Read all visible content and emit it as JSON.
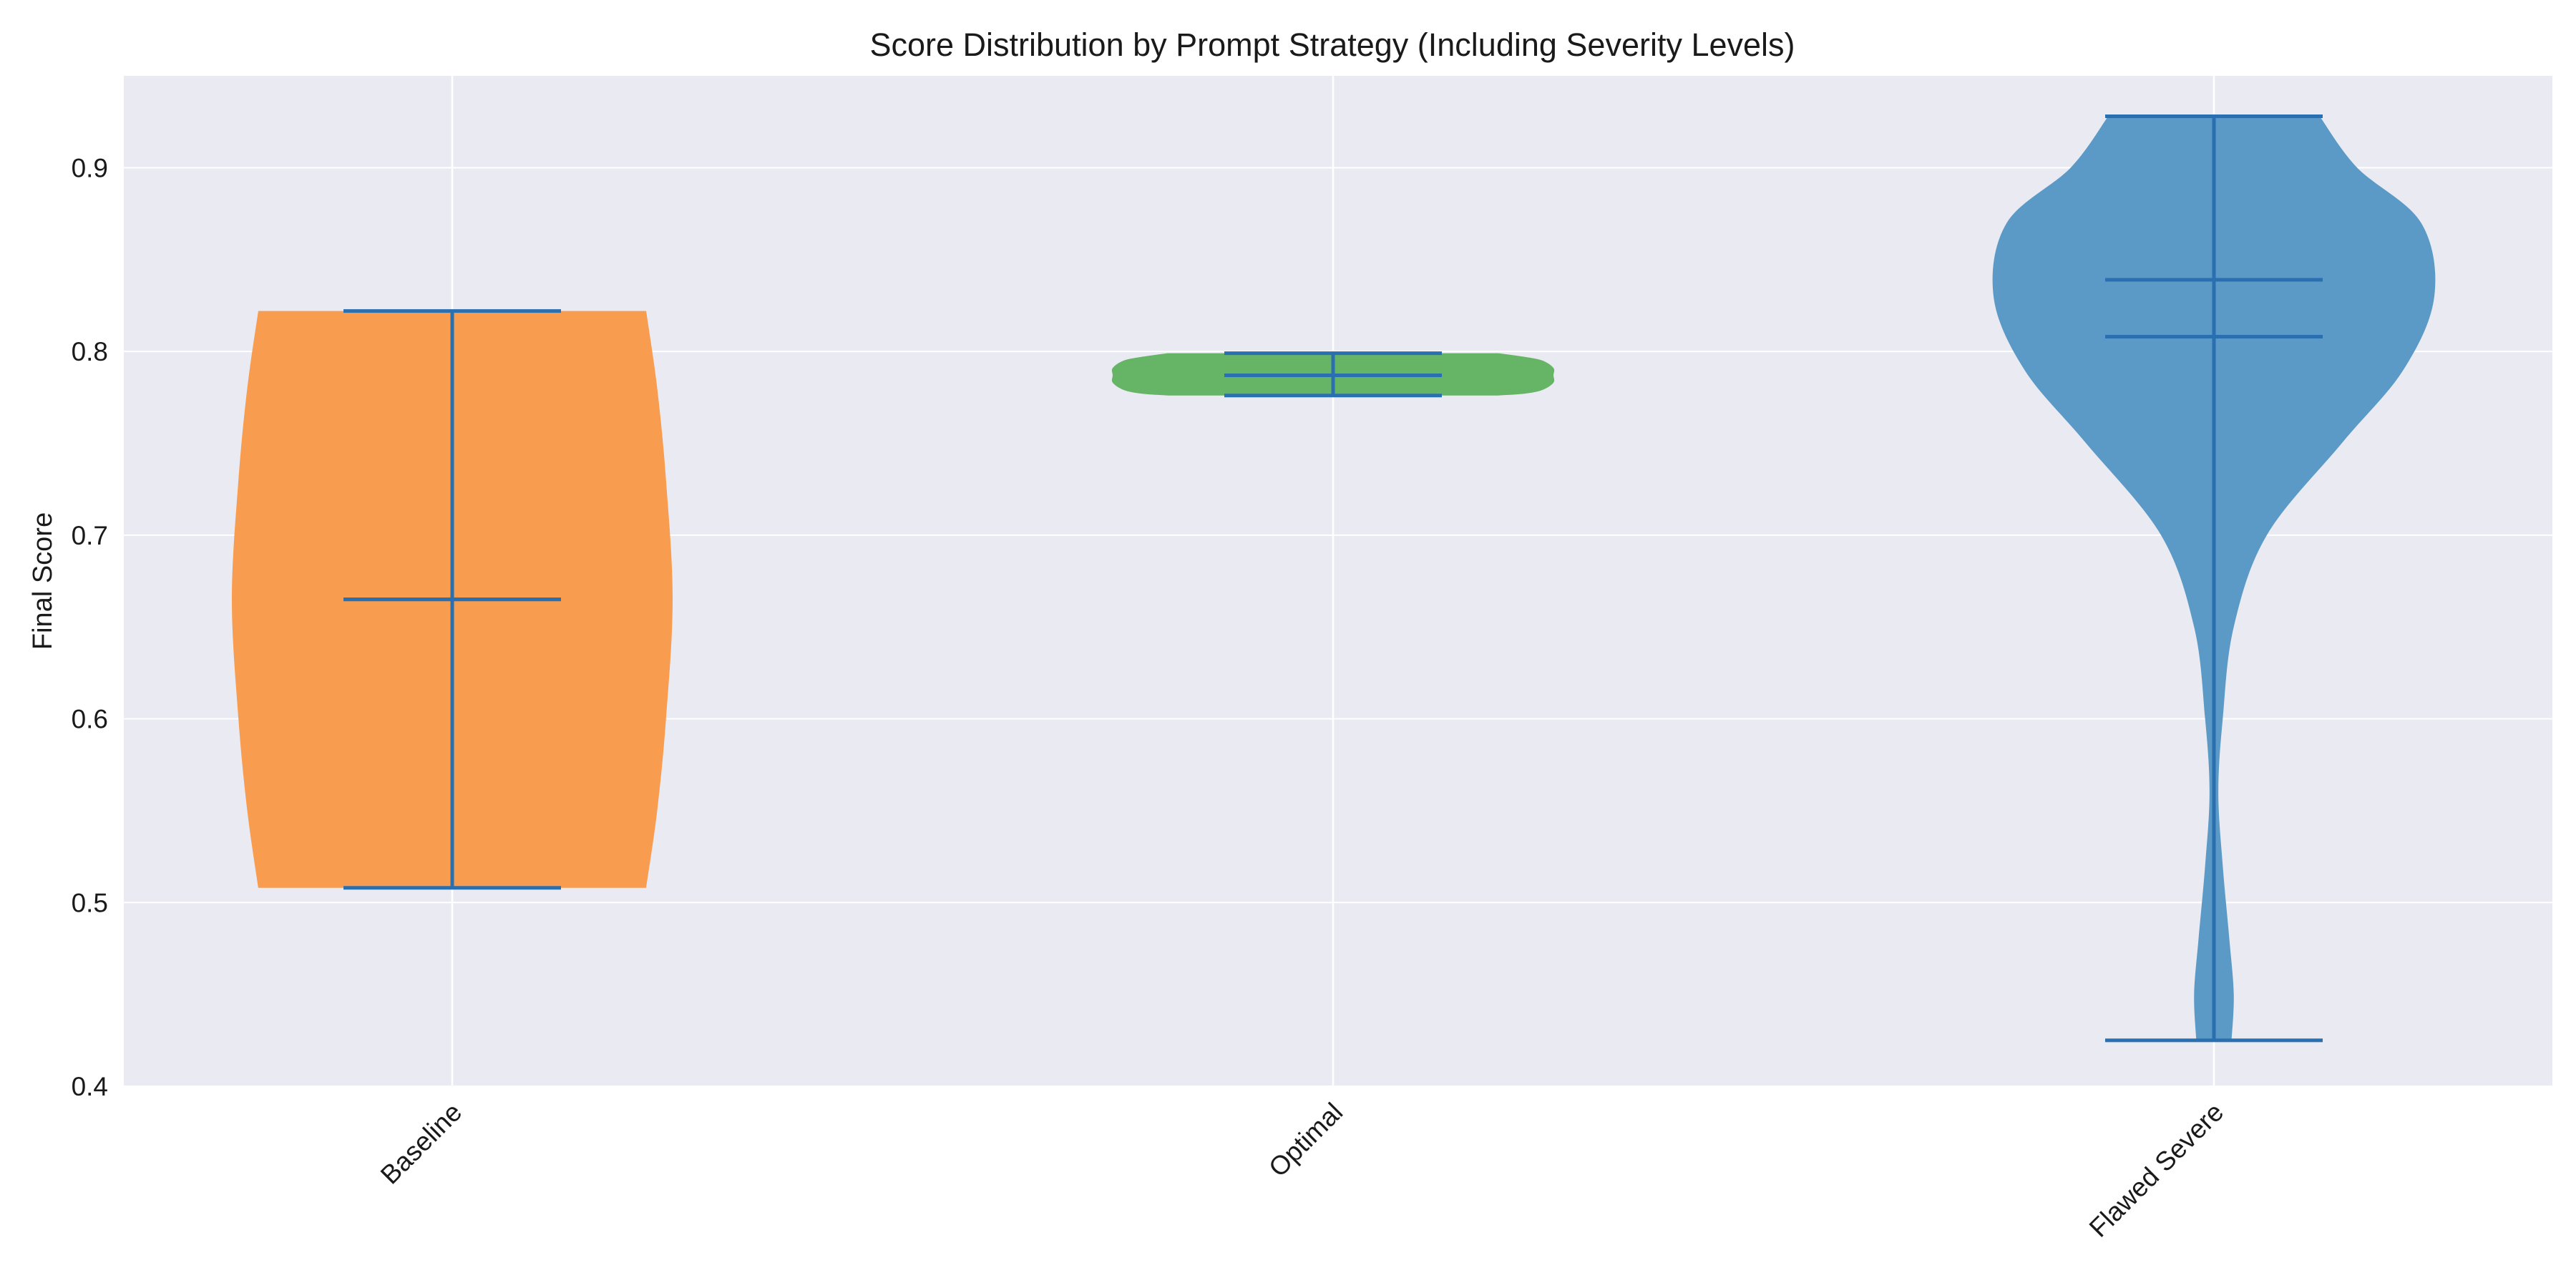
{
  "chart_data": {
    "type": "violin",
    "title": "Score Distribution by Prompt Strategy (Including Severity Levels)",
    "xlabel": "",
    "ylabel": "Final Score",
    "ylim": [
      0.4,
      0.95
    ],
    "yticks": [
      0.4,
      0.5,
      0.6,
      0.7,
      0.8,
      0.9
    ],
    "ytick_labels": [
      "0.4",
      "0.5",
      "0.6",
      "0.7",
      "0.8",
      "0.9"
    ],
    "grid": true,
    "legend": "none",
    "colors": {
      "plot_background": "#eaeaf2",
      "grid": "#ffffff",
      "stats_lines": "#2a6fb0"
    },
    "categories": [
      "Baseline",
      "Optimal",
      "Flawed Severe"
    ],
    "series": [
      {
        "category": "Baseline",
        "color": "#f89c4f",
        "min": 0.508,
        "max": 0.822,
        "mean": 0.665,
        "median": 0.665,
        "density_profile": [
          [
            0.508,
            0.88
          ],
          [
            0.55,
            0.93
          ],
          [
            0.6,
            0.97
          ],
          [
            0.665,
            1.0
          ],
          [
            0.73,
            0.97
          ],
          [
            0.78,
            0.93
          ],
          [
            0.822,
            0.88
          ]
        ]
      },
      {
        "category": "Optimal",
        "color": "#66b566",
        "min": 0.776,
        "max": 0.799,
        "mean": 0.787,
        "median": 0.787,
        "density_profile": [
          [
            0.776,
            0.75
          ],
          [
            0.777,
            0.87
          ],
          [
            0.779,
            0.95
          ],
          [
            0.783,
            1.0
          ],
          [
            0.787,
            1.0
          ],
          [
            0.791,
            1.0
          ],
          [
            0.795,
            0.95
          ],
          [
            0.797,
            0.87
          ],
          [
            0.799,
            0.75
          ]
        ]
      },
      {
        "category": "Flawed Severe",
        "color": "#5b9ac6",
        "min": 0.425,
        "max": 0.928,
        "mean": 0.808,
        "median": 0.839,
        "density_profile": [
          [
            0.425,
            0.08
          ],
          [
            0.45,
            0.09
          ],
          [
            0.48,
            0.07
          ],
          [
            0.52,
            0.04
          ],
          [
            0.56,
            0.02
          ],
          [
            0.6,
            0.04
          ],
          [
            0.65,
            0.09
          ],
          [
            0.7,
            0.24
          ],
          [
            0.75,
            0.58
          ],
          [
            0.79,
            0.86
          ],
          [
            0.83,
            1.0
          ],
          [
            0.87,
            0.94
          ],
          [
            0.9,
            0.65
          ],
          [
            0.928,
            0.48
          ]
        ]
      }
    ]
  }
}
